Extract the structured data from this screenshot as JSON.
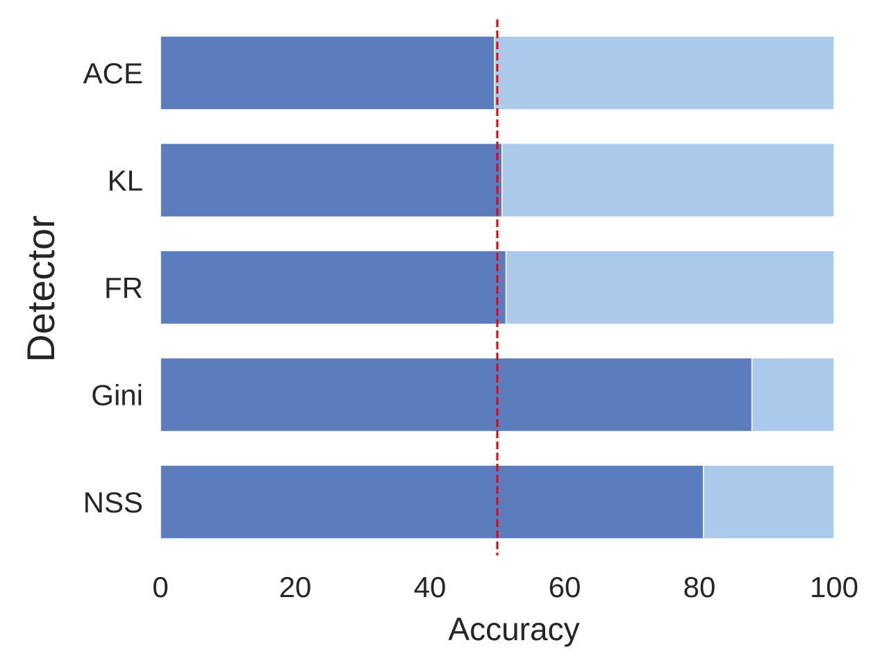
{
  "chart_data": {
    "type": "bar",
    "orientation": "horizontal",
    "stacked": true,
    "categories": [
      "ACE",
      "KL",
      "FR",
      "Gini",
      "NSS"
    ],
    "series": [
      {
        "values": [
          49.6,
          50.7,
          51.3,
          87.8,
          80.6
        ],
        "color": "#5b7dbe"
      },
      {
        "values": [
          50.4,
          49.3,
          48.7,
          12.2,
          19.4
        ],
        "color": "#abc9eb"
      }
    ],
    "xlabel": "Accuracy",
    "ylabel": "Detector",
    "xlim": [
      0,
      100
    ],
    "xticks": [
      0,
      20,
      40,
      60,
      80,
      100
    ],
    "reference_line": {
      "x": 50,
      "color": "#e8000b",
      "style": "dashed"
    },
    "grid": false,
    "legend": "none"
  }
}
